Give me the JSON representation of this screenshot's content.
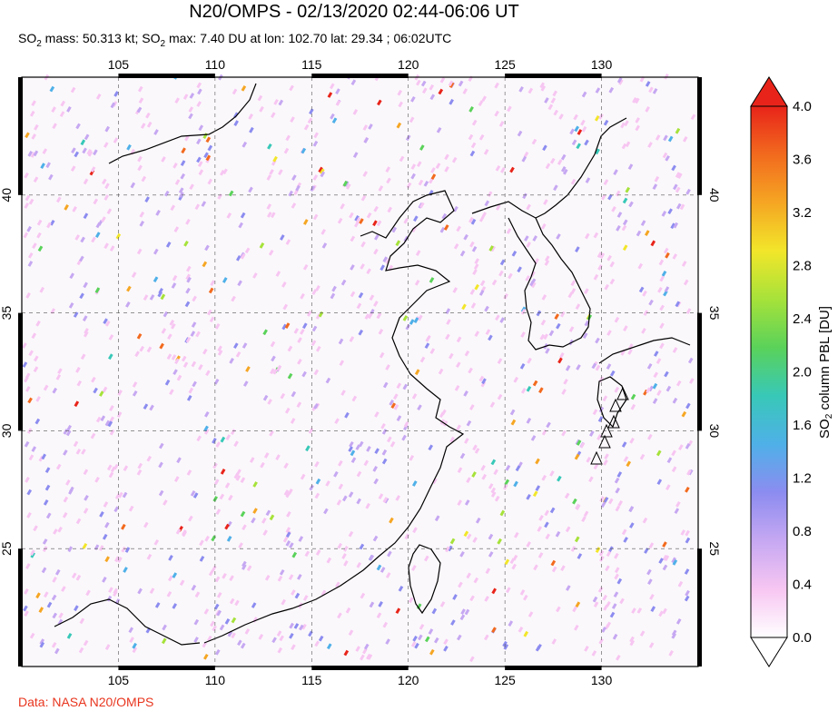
{
  "header": {
    "title": "N20/OMPS - 02/13/2020 02:44-06:06 UT",
    "subtitle_prefix": "SO",
    "subtitle_mass": " mass: 50.313 kt; SO",
    "subtitle_rest": " max: 7.40 DU at lon: 102.70 lat: 29.34 ; 06:02UTC"
  },
  "map": {
    "lon_range": [
      100,
      135
    ],
    "lat_range": [
      20,
      45
    ],
    "lon_ticks": [
      "105",
      "110",
      "115",
      "120",
      "125",
      "130"
    ],
    "lat_ticks": [
      "40",
      "35",
      "30",
      "25"
    ],
    "lon_values": [
      105,
      110,
      115,
      120,
      125,
      130
    ],
    "lat_values": [
      40,
      35,
      30,
      25
    ]
  },
  "colorbar": {
    "label_prefix": "SO",
    "label_suffix": " column PBL [DU]",
    "ticks": [
      "4.0",
      "3.6",
      "3.2",
      "2.8",
      "2.4",
      "2.0",
      "1.6",
      "1.2",
      "0.8",
      "0.4",
      "0.0"
    ],
    "min": 0.0,
    "max": 4.0,
    "colors": [
      "#ffffff",
      "#f7c6f2",
      "#c6a8f2",
      "#8c8cf0",
      "#4fb0e8",
      "#38c8b8",
      "#5ad25a",
      "#a6e23a",
      "#f2e62a",
      "#f5a623",
      "#f26a1e",
      "#e8241a"
    ]
  },
  "footer": {
    "credit": "Data: NASA N20/OMPS"
  }
}
